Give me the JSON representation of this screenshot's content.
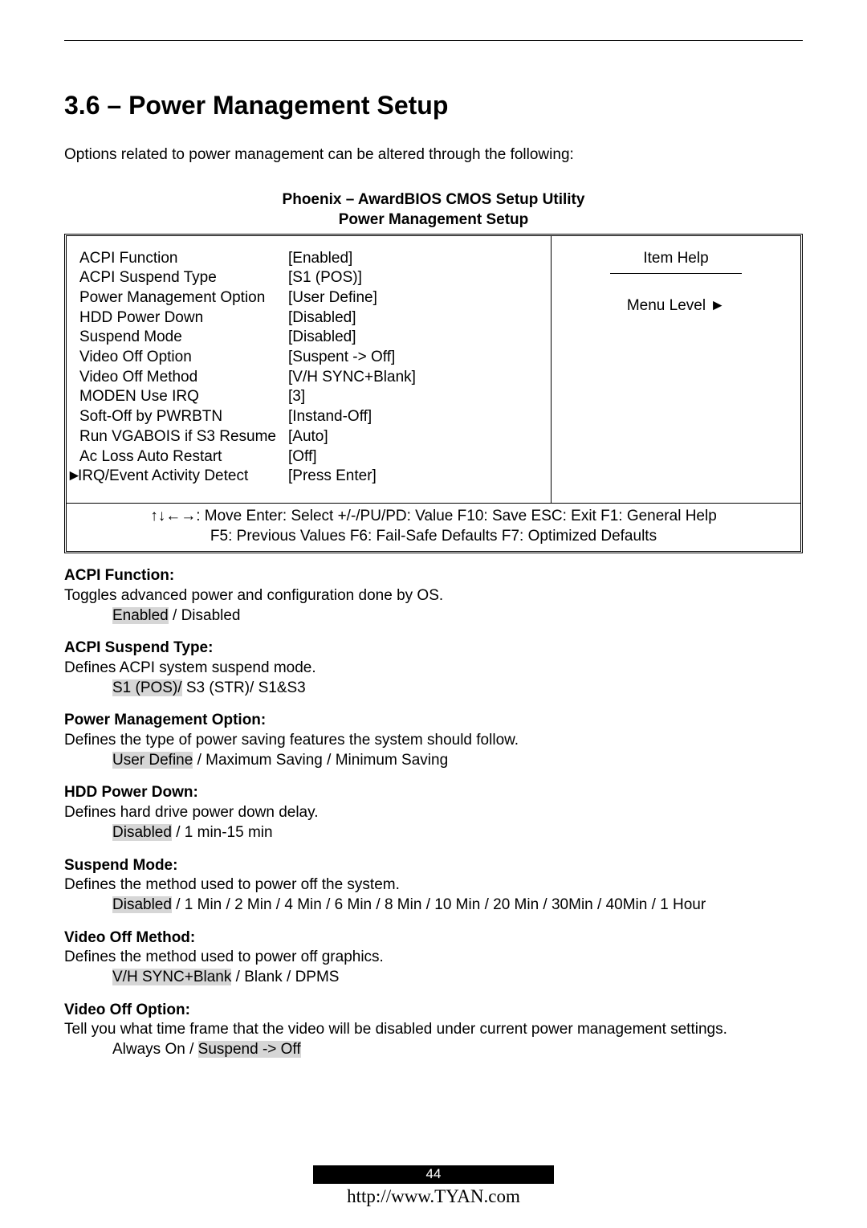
{
  "section_title": "3.6 – Power Management Setup",
  "intro": "Options related to power management can be altered through the following:",
  "bios_header": "Phoenix – AwardBIOS CMOS Setup Utility",
  "bios_subheader": "Power Management Setup",
  "bios_rows": [
    {
      "name": "ACPI Function",
      "value": "[Enabled]",
      "arrow": false
    },
    {
      "name": "ACPI Suspend Type",
      "value": "[S1 (POS)]",
      "arrow": false
    },
    {
      "name": "Power Management Option",
      "value": "[User Define]",
      "arrow": false
    },
    {
      "name": "HDD Power Down",
      "value": "[Disabled]",
      "arrow": false
    },
    {
      "name": "Suspend Mode",
      "value": "[Disabled]",
      "arrow": false
    },
    {
      "name": "Video Off Option",
      "value": "[Suspent -> Off]",
      "arrow": false
    },
    {
      "name": "Video Off Method",
      "value": "[V/H SYNC+Blank]",
      "arrow": false
    },
    {
      "name": "MODEN Use IRQ",
      "value": "[3]",
      "arrow": false
    },
    {
      "name": "Soft-Off by PWRBTN",
      "value": "[Instand-Off]",
      "arrow": false
    },
    {
      "name": "Run VGABOIS if S3 Resume",
      "value": "[Auto]",
      "arrow": false
    },
    {
      "name": "Ac Loss Auto Restart",
      "value": "[Off]",
      "arrow": false
    },
    {
      "name": "IRQ/Event Activity Detect",
      "value": "[Press Enter]",
      "arrow": true
    }
  ],
  "item_help": "Item Help",
  "menu_level": "Menu Level   ►",
  "bios_footer1": "↑↓←→: Move  Enter: Select  +/-/PU/PD: Value  F10: Save   ESC: Exit  F1: General Help",
  "bios_footer2": "F5: Previous Values   F6: Fail-Safe Defaults   F7: Optimized Defaults",
  "descriptions": [
    {
      "title": "ACPI Function:",
      "desc": "Toggles advanced power and configuration done by OS.",
      "default": "Enabled",
      "rest": " / Disabled"
    },
    {
      "title": "ACPI Suspend Type:",
      "desc": "Defines ACPI system suspend mode.",
      "default": "S1 (POS)/",
      "rest": " S3 (STR)/ S1&S3"
    },
    {
      "title": "Power Management Option:",
      "desc": "Defines the type of power saving features the system should follow.",
      "default": "User Define",
      "rest": " / Maximum Saving / Minimum Saving"
    },
    {
      "title": "HDD Power Down:",
      "desc": "Defines hard drive power down delay.",
      "default": "Disabled",
      "rest": " / 1 min-15 min"
    },
    {
      "title": "Suspend Mode:",
      "desc": "Defines the method used to power off the system.",
      "default": "Disabled",
      "rest": " / 1 Min / 2 Min / 4 Min / 6 Min / 8 Min / 10 Min / 20 Min / 30Min / 40Min / 1 Hour"
    },
    {
      "title": "Video Off Method:",
      "desc": "Defines the method used to power off graphics.",
      "default": "V/H SYNC+Blank",
      "rest": " / Blank / DPMS"
    },
    {
      "title": "Video Off Option:",
      "desc": "Tell you what time frame that the video will be disabled under current power management settings.",
      "default": "Suspend -> Off",
      "prefix": "Always On / ",
      "rest": ""
    }
  ],
  "page_number": "44",
  "url": "http://www.TYAN.com"
}
